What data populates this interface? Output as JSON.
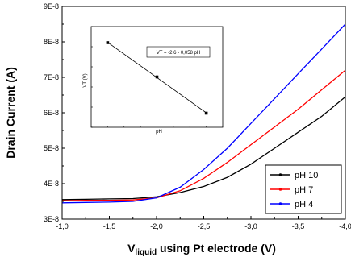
{
  "chart_data": [
    {
      "type": "line",
      "xlabel_main": "V",
      "xlabel_sub": "liquid",
      "xlabel_rest": " using Pt electrode (V)",
      "ylabel": "Drain Current (A)",
      "xlim": [
        -1.0,
        -4.0
      ],
      "ylim": [
        3e-08,
        9e-08
      ],
      "x_ticks": [
        {
          "value": -1.0,
          "label": "-1,0"
        },
        {
          "value": -1.5,
          "label": "-1,5"
        },
        {
          "value": -2.0,
          "label": "-2,0"
        },
        {
          "value": -2.5,
          "label": "-2,5"
        },
        {
          "value": -3.0,
          "label": "-3,0"
        },
        {
          "value": -3.5,
          "label": "-3,5"
        },
        {
          "value": -4.0,
          "label": "-4,0"
        }
      ],
      "y_ticks": [
        {
          "value": 3e-08,
          "label": "3E-8"
        },
        {
          "value": 4e-08,
          "label": "4E-8"
        },
        {
          "value": 5e-08,
          "label": "5E-8"
        },
        {
          "value": 6e-08,
          "label": "6E-8"
        },
        {
          "value": 7e-08,
          "label": "7E-8"
        },
        {
          "value": 8e-08,
          "label": "8E-8"
        },
        {
          "value": 9e-08,
          "label": "9E-8"
        }
      ],
      "legend_position": "bottom-right",
      "series": [
        {
          "name": "pH 10",
          "color": "#000000",
          "x": [
            -1.0,
            -1.25,
            -1.5,
            -1.75,
            -2.0,
            -2.25,
            -2.5,
            -2.75,
            -3.0,
            -3.25,
            -3.5,
            -3.75,
            -4.0
          ],
          "y": [
            3.55e-08,
            3.56e-08,
            3.57e-08,
            3.58e-08,
            3.63e-08,
            3.75e-08,
            3.92e-08,
            4.18e-08,
            4.55e-08,
            5e-08,
            5.45e-08,
            5.9e-08,
            6.45e-08
          ]
        },
        {
          "name": "pH 7",
          "color": "#ff0000",
          "x": [
            -1.0,
            -1.25,
            -1.5,
            -1.75,
            -2.0,
            -2.25,
            -2.5,
            -2.75,
            -3.0,
            -3.25,
            -3.5,
            -3.75,
            -4.0
          ],
          "y": [
            3.52e-08,
            3.53e-08,
            3.53e-08,
            3.54e-08,
            3.6e-08,
            3.8e-08,
            4.15e-08,
            4.6e-08,
            5.1e-08,
            5.6e-08,
            6.1e-08,
            6.65e-08,
            7.2e-08
          ]
        },
        {
          "name": "pH 4",
          "color": "#0000ff",
          "x": [
            -1.0,
            -1.25,
            -1.5,
            -1.75,
            -2.0,
            -2.25,
            -2.5,
            -2.75,
            -3.0,
            -3.25,
            -3.5,
            -3.75,
            -4.0
          ],
          "y": [
            3.46e-08,
            3.47e-08,
            3.48e-08,
            3.5e-08,
            3.6e-08,
            3.9e-08,
            4.4e-08,
            5e-08,
            5.7e-08,
            6.4e-08,
            7.1e-08,
            7.8e-08,
            8.5e-08
          ]
        }
      ]
    },
    {
      "type": "scatter",
      "xlabel": "pH",
      "ylabel": "VT (V)",
      "annotation": "VT = -2,6 - 0,058 pH",
      "x": [
        4,
        7,
        10
      ],
      "y": [
        -2.83,
        -3.0,
        -3.18
      ],
      "xlim": [
        3,
        11
      ],
      "ylim": [
        -3.25,
        -2.75
      ],
      "fit": true
    }
  ]
}
